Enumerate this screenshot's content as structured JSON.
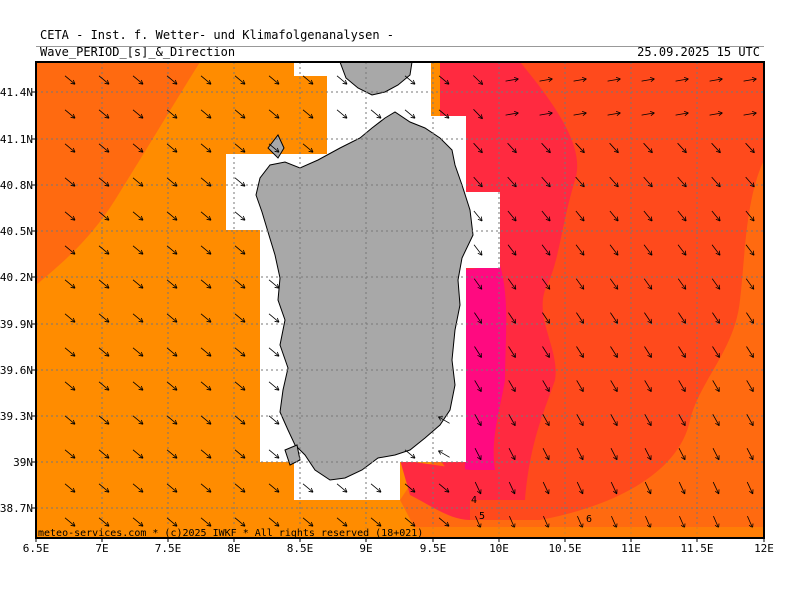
{
  "header": {
    "title": "CETA - Inst. f. Wetter- und Klimafolgenanalysen -",
    "subtitle": "Wave_PERIOD_[s]_&_Direction",
    "datetime": "25.09.2025 15 UTC"
  },
  "footer": {
    "credit": "meteo-services.com * (c)2025 IWKF * All rights reserved (18+021)"
  },
  "axes": {
    "y_labels": [
      "41.4N",
      "41.1N",
      "40.8N",
      "40.5N",
      "40.2N",
      "39.9N",
      "39.6N",
      "39.3N",
      "39N",
      "38.7N"
    ],
    "x_labels": [
      "6.5E",
      "7E",
      "7.5E",
      "8E",
      "8.5E",
      "9E",
      "9.5E",
      "10E",
      "10.5E",
      "11E",
      "11.5E",
      "12E"
    ]
  },
  "contour_labels": [
    "4",
    "5",
    "6"
  ],
  "colors": {
    "period_5_6": "#ff8c00",
    "period_6_7": "#ff6a10",
    "period_7_8": "#ff4a1c",
    "period_8_9": "#ff2a40",
    "period_9_plus": "#ff0a80",
    "land": "#a8a8a8",
    "no_data": "#ffffff"
  },
  "wave_direction": "southeast"
}
